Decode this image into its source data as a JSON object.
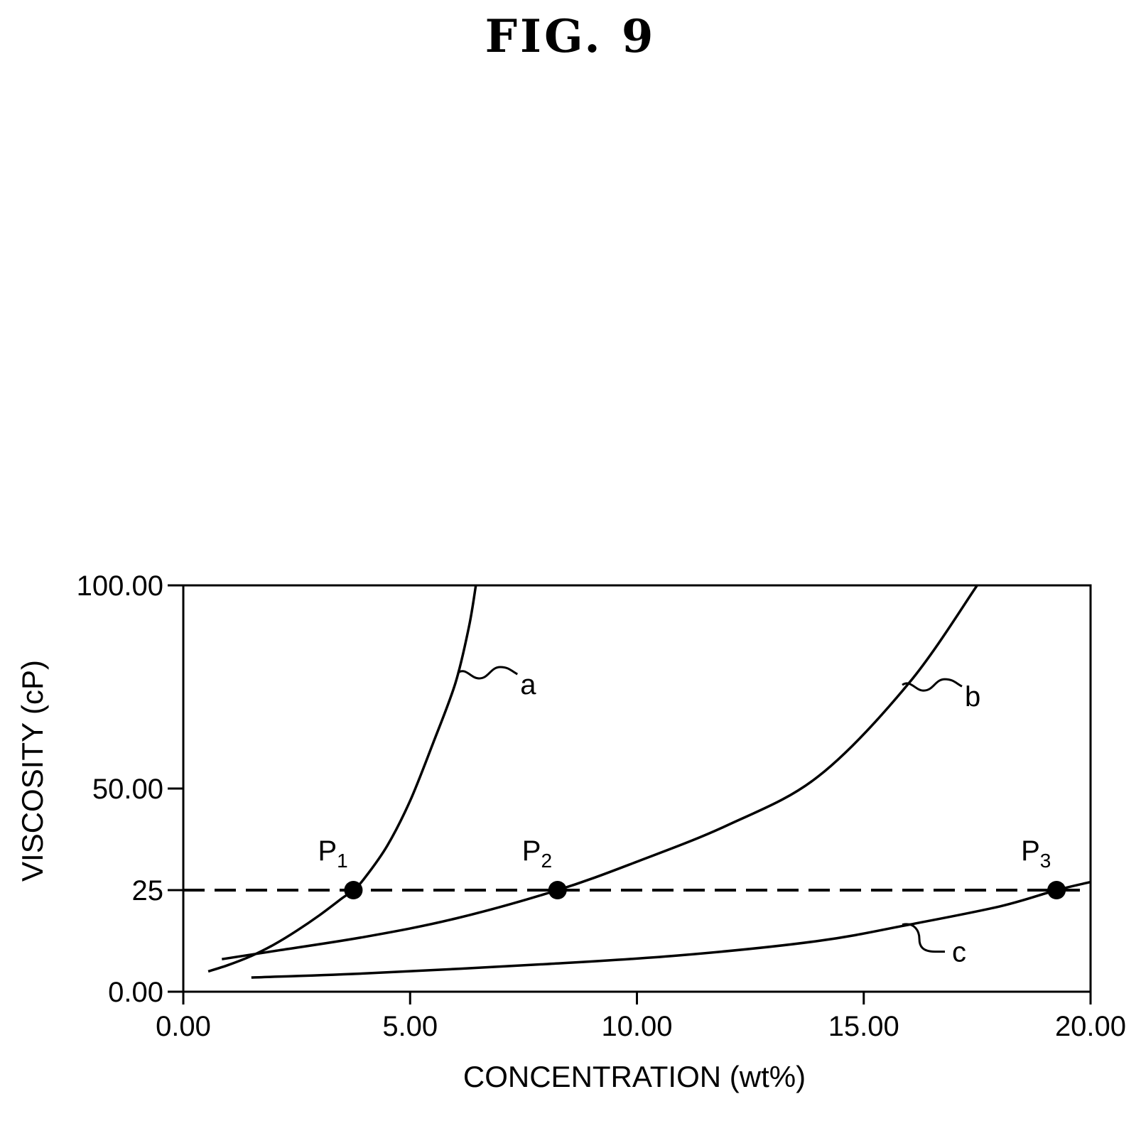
{
  "figure_title": "FIG. 9",
  "chart_data": {
    "type": "line",
    "xlabel": "CONCENTRATION (wt%)",
    "ylabel": "VISCOSITY (cP)",
    "xlim": [
      0,
      20
    ],
    "ylim": [
      0,
      100
    ],
    "x_ticks": [
      0,
      5,
      10,
      15,
      20
    ],
    "x_tick_labels": [
      "0.00",
      "5.00",
      "10.00",
      "15.00",
      "20.00"
    ],
    "y_ticks": [
      0,
      25,
      50,
      100
    ],
    "y_tick_labels": [
      "0.00",
      "25",
      "50.00",
      "100.00"
    ],
    "grid": false,
    "legend": "none",
    "series": [
      {
        "name": "a",
        "x": [
          0.55,
          1.0,
          1.5,
          2.0,
          2.5,
          3.0,
          3.5,
          3.75,
          4.0,
          4.5,
          5.0,
          5.5,
          6.0,
          6.3,
          6.45
        ],
        "y": [
          5.0,
          6.6,
          8.8,
          11.6,
          15.0,
          18.8,
          23.0,
          25.0,
          28.0,
          36.0,
          47.0,
          61.0,
          76.0,
          90.0,
          100.0
        ]
      },
      {
        "name": "b",
        "x": [
          0.85,
          2.0,
          4.0,
          6.0,
          8.25,
          10.0,
          12.0,
          14.0,
          16.0,
          17.5
        ],
        "y": [
          8.0,
          10.0,
          13.5,
          18.0,
          25.0,
          32.0,
          41.0,
          53.0,
          76.0,
          100.0
        ]
      },
      {
        "name": "c",
        "x": [
          1.5,
          4.0,
          8.0,
          11.0,
          14.0,
          16.0,
          18.0,
          19.25,
          20.0
        ],
        "y": [
          3.5,
          4.5,
          6.8,
          9.0,
          12.5,
          16.5,
          21.0,
          25.0,
          27.0
        ]
      }
    ],
    "reference_line": {
      "y": 25,
      "style": "dashed"
    },
    "marked_points": [
      {
        "label": "P",
        "sub": "1",
        "x": 3.75,
        "y": 25
      },
      {
        "label": "P",
        "sub": "2",
        "x": 8.25,
        "y": 25
      },
      {
        "label": "P",
        "sub": "3",
        "x": 19.25,
        "y": 25
      }
    ],
    "curve_labels": [
      {
        "text": "a",
        "x": 6.05,
        "y": 78.5
      },
      {
        "text": "b",
        "x": 15.85,
        "y": 75.5
      },
      {
        "text": "c",
        "x": 15.85,
        "y": 16.5
      }
    ]
  }
}
